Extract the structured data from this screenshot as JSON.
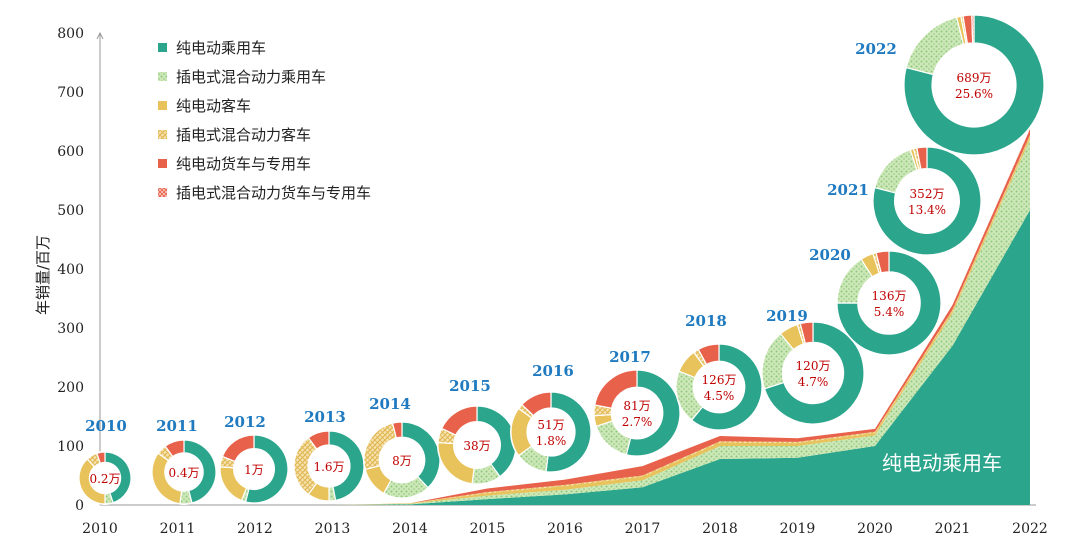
{
  "chart_data": {
    "type": "area",
    "title": "",
    "xlabel": "",
    "ylabel": "年销量/百万",
    "ylim": [
      0,
      800
    ],
    "yticks": [
      0,
      100,
      200,
      300,
      400,
      500,
      600,
      700,
      800
    ],
    "x": [
      "2010",
      "2011",
      "2012",
      "2013",
      "2014",
      "2015",
      "2016",
      "2017",
      "2018",
      "2019",
      "2020",
      "2021",
      "2022"
    ],
    "legend_position": "top-left",
    "area_label": "纯电动乘用车",
    "colors": {
      "bev_car": "#2CA58D",
      "phev_car": "#B5DCA0",
      "bev_bus": "#E8C25A",
      "phev_bus": "#F0D590",
      "bev_truck": "#E8614A",
      "phev_truck": "#F3A08F"
    },
    "series": [
      {
        "key": "bev_car",
        "name": "纯电动乘用车",
        "values": [
          0,
          0,
          0,
          0,
          1,
          10,
          18,
          30,
          78,
          80,
          100,
          270,
          500
        ]
      },
      {
        "key": "phev_car",
        "name": "插电式混合动力乘用车",
        "values": [
          0,
          0,
          0,
          0,
          1,
          6,
          8,
          12,
          22,
          20,
          18,
          55,
          120
        ]
      },
      {
        "key": "bev_bus",
        "name": "纯电动客车",
        "values": [
          0,
          0,
          0,
          0,
          1,
          4,
          6,
          6,
          6,
          5,
          4,
          4,
          5
        ]
      },
      {
        "key": "phev_bus",
        "name": "插电式混合动力客车",
        "values": [
          0,
          0,
          0,
          0,
          0,
          2,
          2,
          2,
          2,
          2,
          2,
          2,
          2
        ]
      },
      {
        "key": "bev_truck",
        "name": "纯电动货车与专用车",
        "values": [
          0,
          0,
          0,
          0,
          0,
          6,
          9,
          16,
          9,
          6,
          5,
          8,
          10
        ]
      },
      {
        "key": "phev_truck",
        "name": "插电式混合动力货车与专用车",
        "values": [
          0,
          0,
          0,
          0,
          0,
          0,
          0,
          0,
          0,
          0,
          0,
          0,
          1
        ]
      }
    ],
    "donuts": [
      {
        "year": "2010",
        "label": "0.2万",
        "share": "",
        "parts": [
          0.45,
          0.05,
          0.38,
          0.07,
          0.05,
          0
        ]
      },
      {
        "year": "2011",
        "label": "0.4万",
        "share": "",
        "parts": [
          0.46,
          0.06,
          0.33,
          0.05,
          0.1,
          0
        ]
      },
      {
        "year": "2012",
        "label": "1万",
        "share": "",
        "parts": [
          0.54,
          0.02,
          0.2,
          0.05,
          0.19,
          0
        ]
      },
      {
        "year": "2013",
        "label": "1.6万",
        "share": "",
        "parts": [
          0.47,
          0.03,
          0.1,
          0.3,
          0.1,
          0
        ]
      },
      {
        "year": "2014",
        "label": "8万",
        "share": "",
        "parts": [
          0.38,
          0.2,
          0.13,
          0.25,
          0.04,
          0
        ]
      },
      {
        "year": "2015",
        "label": "38万",
        "share": "",
        "parts": [
          0.4,
          0.12,
          0.24,
          0.06,
          0.18,
          0
        ]
      },
      {
        "year": "2016",
        "label": "51万",
        "share": "1.8%",
        "parts": [
          0.52,
          0.13,
          0.2,
          0.02,
          0.13,
          0
        ]
      },
      {
        "year": "2017",
        "label": "81万",
        "share": "2.7%",
        "parts": [
          0.54,
          0.16,
          0.04,
          0.04,
          0.22,
          0
        ]
      },
      {
        "year": "2018",
        "label": "126万",
        "share": "4.5%",
        "parts": [
          0.61,
          0.2,
          0.09,
          0.02,
          0.08,
          0
        ]
      },
      {
        "year": "2019",
        "label": "120万",
        "share": "4.7%",
        "parts": [
          0.7,
          0.19,
          0.06,
          0.01,
          0.04,
          0
        ]
      },
      {
        "year": "2020",
        "label": "136万",
        "share": "5.4%",
        "parts": [
          0.75,
          0.16,
          0.04,
          0.01,
          0.04,
          0
        ]
      },
      {
        "year": "2021",
        "label": "352万",
        "share": "13.4%",
        "parts": [
          0.79,
          0.16,
          0.01,
          0.01,
          0.03,
          0
        ]
      },
      {
        "year": "2022",
        "label": "689万",
        "share": "25.6%",
        "parts": [
          0.79,
          0.17,
          0.01,
          0.005,
          0.02,
          0.005
        ]
      }
    ]
  }
}
